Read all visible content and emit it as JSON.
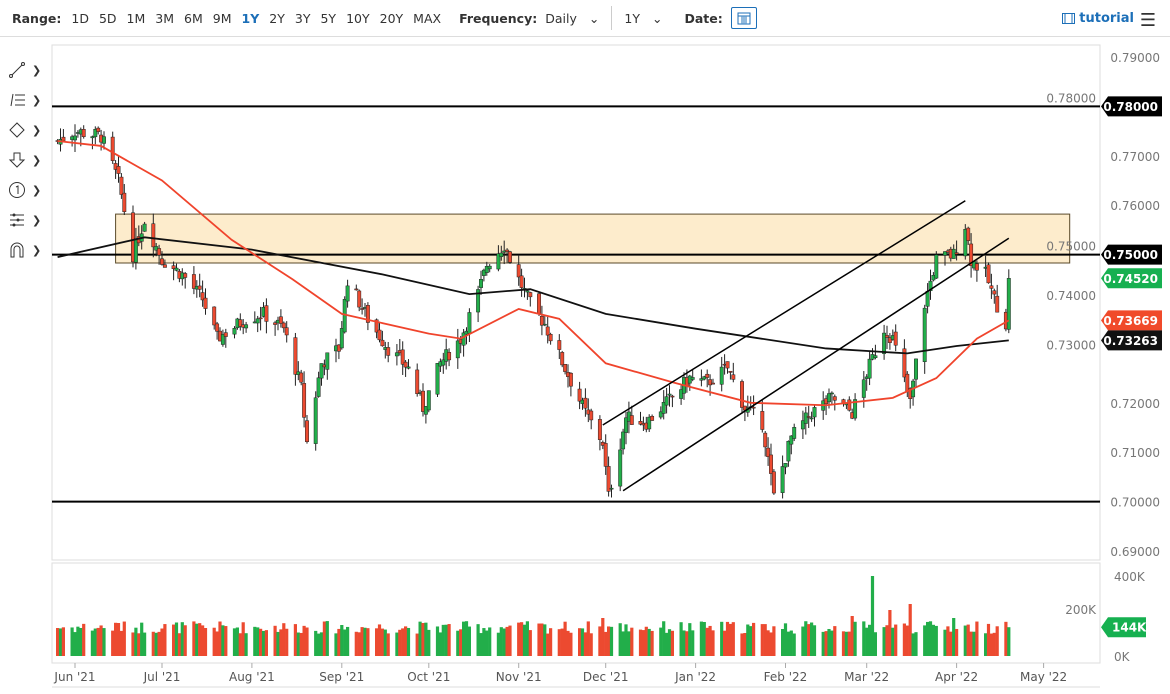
{
  "toolbar": {
    "range_label": "Range:",
    "ranges": [
      "1D",
      "5D",
      "1M",
      "3M",
      "6M",
      "9M",
      "1Y",
      "2Y",
      "3Y",
      "5Y",
      "10Y",
      "20Y",
      "MAX"
    ],
    "active_range": "1Y",
    "frequency_label": "Frequency:",
    "frequency": "Daily",
    "period": "1Y",
    "date_label": "Date:",
    "tutorial": "tutorial"
  },
  "left_tools": [
    "line-tool-icon",
    "fib-tool-icon",
    "shapes-tool-icon",
    "arrow-tool-icon",
    "label-tool-icon",
    "pitchfork-tool-icon",
    "magnet-icon"
  ],
  "chart_data": {
    "type": "candlestick",
    "ylim": [
      0.69,
      0.79
    ],
    "y_ticks": [
      "0.79000",
      "0.78000",
      "0.77000",
      "0.76000",
      "0.75000",
      "0.74000",
      "0.73000",
      "0.72000",
      "0.71000",
      "0.70000",
      "0.69000"
    ],
    "x_ticks": [
      [
        "2021-06-01",
        "Jun '21"
      ],
      [
        "2021-07-01",
        "Jul '21"
      ],
      [
        "2021-08-01",
        "Aug '21"
      ],
      [
        "2021-09-01",
        "Sep '21"
      ],
      [
        "2021-10-01",
        "Oct '21"
      ],
      [
        "2021-11-01",
        "Nov '21"
      ],
      [
        "2021-12-01",
        "Dec '21"
      ],
      [
        "2022-01-01",
        "Jan '22"
      ],
      [
        "2022-02-01",
        "Feb '22"
      ],
      [
        "2022-03-01",
        "Mar '22"
      ],
      [
        "2022-04-01",
        "Apr '22"
      ],
      [
        "2022-05-01",
        "May '22"
      ]
    ],
    "close_path": [
      [
        "2021-05-26",
        0.773
      ],
      [
        "2021-06-01",
        0.775
      ],
      [
        "2021-06-10",
        0.774
      ],
      [
        "2021-06-16",
        0.765
      ],
      [
        "2021-06-21",
        0.75
      ],
      [
        "2021-06-25",
        0.757
      ],
      [
        "2021-07-01",
        0.749
      ],
      [
        "2021-07-08",
        0.746
      ],
      [
        "2021-07-15",
        0.741
      ],
      [
        "2021-07-20",
        0.733
      ],
      [
        "2021-07-30",
        0.737
      ],
      [
        "2021-08-05",
        0.738
      ],
      [
        "2021-08-12",
        0.735
      ],
      [
        "2021-08-18",
        0.723
      ],
      [
        "2021-08-20",
        0.712
      ],
      [
        "2021-08-25",
        0.728
      ],
      [
        "2021-08-31",
        0.731
      ],
      [
        "2021-09-03",
        0.745
      ],
      [
        "2021-09-10",
        0.737
      ],
      [
        "2021-09-17",
        0.731
      ],
      [
        "2021-09-24",
        0.727
      ],
      [
        "2021-09-29",
        0.719
      ],
      [
        "2021-10-05",
        0.728
      ],
      [
        "2021-10-12",
        0.733
      ],
      [
        "2021-10-18",
        0.742
      ],
      [
        "2021-10-21",
        0.748
      ],
      [
        "2021-10-27",
        0.752
      ],
      [
        "2021-11-01",
        0.745
      ],
      [
        "2021-11-05",
        0.74
      ],
      [
        "2021-11-10",
        0.736
      ],
      [
        "2021-11-17",
        0.727
      ],
      [
        "2021-11-24",
        0.718
      ],
      [
        "2021-11-30",
        0.712
      ],
      [
        "2021-12-02",
        0.701
      ],
      [
        "2021-12-08",
        0.717
      ],
      [
        "2021-12-15",
        0.716
      ],
      [
        "2021-12-22",
        0.72
      ],
      [
        "2021-12-30",
        0.725
      ],
      [
        "2022-01-05",
        0.724
      ],
      [
        "2022-01-12",
        0.727
      ],
      [
        "2022-01-18",
        0.719
      ],
      [
        "2022-01-24",
        0.716
      ],
      [
        "2022-01-28",
        0.701
      ],
      [
        "2022-02-03",
        0.713
      ],
      [
        "2022-02-10",
        0.718
      ],
      [
        "2022-02-17",
        0.721
      ],
      [
        "2022-02-24",
        0.718
      ],
      [
        "2022-03-01",
        0.726
      ],
      [
        "2022-03-07",
        0.735
      ],
      [
        "2022-03-10",
        0.733
      ],
      [
        "2022-03-16",
        0.72
      ],
      [
        "2022-03-21",
        0.74
      ],
      [
        "2022-03-25",
        0.749
      ],
      [
        "2022-03-31",
        0.75
      ],
      [
        "2022-04-04",
        0.756
      ],
      [
        "2022-04-06",
        0.749
      ],
      [
        "2022-04-11",
        0.746
      ],
      [
        "2022-04-14",
        0.741
      ],
      [
        "2022-04-18",
        0.736
      ],
      [
        "2022-04-19",
        0.7452
      ]
    ],
    "ma_50": [
      [
        "2021-05-26",
        0.773
      ],
      [
        "2021-06-10",
        0.772
      ],
      [
        "2021-07-01",
        0.765
      ],
      [
        "2021-07-25",
        0.753
      ],
      [
        "2021-08-15",
        0.745
      ],
      [
        "2021-09-01",
        0.738
      ],
      [
        "2021-10-01",
        0.734
      ],
      [
        "2021-10-12",
        0.733
      ],
      [
        "2021-11-01",
        0.739
      ],
      [
        "2021-11-15",
        0.737
      ],
      [
        "2021-12-01",
        0.728
      ],
      [
        "2021-12-25",
        0.724
      ],
      [
        "2022-01-20",
        0.72
      ],
      [
        "2022-02-15",
        0.7195
      ],
      [
        "2022-03-10",
        0.721
      ],
      [
        "2022-03-25",
        0.725
      ],
      [
        "2022-04-08",
        0.733
      ],
      [
        "2022-04-19",
        0.73669
      ]
    ],
    "ma_200": [
      [
        "2021-05-26",
        0.7495
      ],
      [
        "2021-06-25",
        0.7535
      ],
      [
        "2021-08-01",
        0.751
      ],
      [
        "2021-09-15",
        0.746
      ],
      [
        "2021-10-15",
        0.742
      ],
      [
        "2021-11-05",
        0.743
      ],
      [
        "2021-12-01",
        0.738
      ],
      [
        "2022-01-01",
        0.735
      ],
      [
        "2022-02-15",
        0.731
      ],
      [
        "2022-03-15",
        0.73
      ],
      [
        "2022-04-01",
        0.7315
      ],
      [
        "2022-04-19",
        0.73263
      ]
    ],
    "horizontal_lines": [
      0.78,
      0.75,
      0.7
    ],
    "zone": {
      "from": "2021-06-15",
      "to": "2022-05-10",
      "top": 0.7582,
      "bottom": 0.7483
    },
    "channel_lines": [
      [
        [
          "2021-11-30",
          0.7155
        ],
        [
          "2022-04-04",
          0.7609
        ]
      ],
      [
        [
          "2021-12-07",
          0.7022
        ],
        [
          "2022-04-19",
          0.7533
        ]
      ]
    ],
    "price_labels": [
      {
        "text": "0.78000",
        "value": 0.78,
        "color": "#000000"
      },
      {
        "text": "0.75000",
        "value": 0.75,
        "color": "#000000"
      },
      {
        "text": "0.74520",
        "value": 0.7452,
        "color": "#16b050"
      },
      {
        "text": "0.73669",
        "value": 0.73669,
        "color": "#f04a2a"
      },
      {
        "text": "0.73263",
        "value": 0.73263,
        "color": "#111111"
      }
    ],
    "volume": {
      "ylim": [
        0,
        400000
      ],
      "y_ticks": [
        "400K",
        "200K",
        "0K"
      ],
      "last_label": "144K",
      "typical": 140000,
      "spikes": [
        [
          "2021-06-16",
          165000
        ],
        [
          "2021-11-30",
          190000
        ],
        [
          "2022-02-24",
          200000
        ],
        [
          "2022-03-03",
          400000
        ],
        [
          "2022-03-09",
          230000
        ],
        [
          "2022-03-16",
          260000
        ],
        [
          "2022-03-31",
          190000
        ]
      ]
    },
    "colors": {
      "up": "#22ae4a",
      "down": "#ec4a30",
      "ma50": "#f0442c",
      "ma200": "#111111",
      "zone": "#fdeccc"
    }
  }
}
